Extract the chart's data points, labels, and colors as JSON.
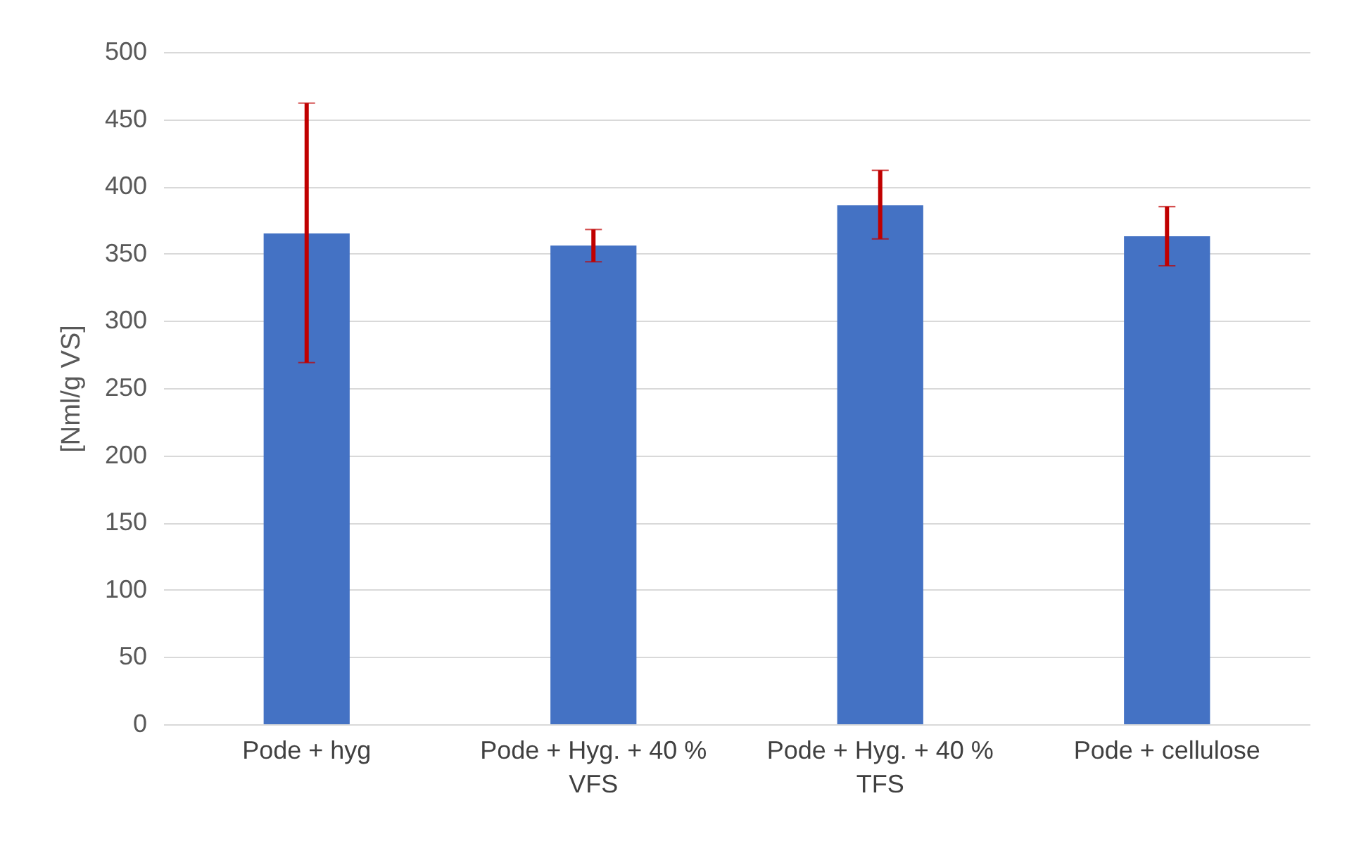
{
  "chart_data": {
    "type": "bar",
    "ylabel": "[Nml/g VS]",
    "categories": [
      "Pode + hyg",
      "Pode + Hyg. + 40 % VFS",
      "Pode + Hyg. + 40 % TFS",
      "Pode + cellulose"
    ],
    "series": [
      {
        "color": "#4472c4",
        "values": [
          365,
          356,
          386,
          363
        ],
        "errors": [
          [
            269,
            462
          ],
          [
            344,
            368
          ],
          [
            361,
            412
          ],
          [
            341,
            385
          ]
        ]
      }
    ],
    "ylim": [
      0,
      500
    ],
    "yticks": [
      0,
      50,
      100,
      150,
      200,
      250,
      300,
      350,
      400,
      450,
      500
    ],
    "grid": "y"
  }
}
